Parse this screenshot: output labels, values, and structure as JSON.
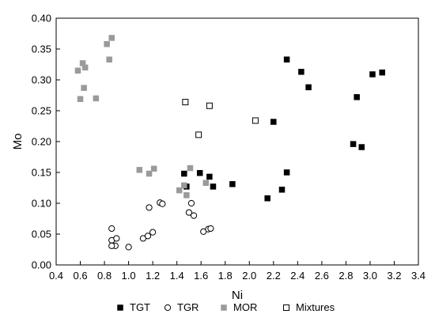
{
  "chart_data": {
    "type": "scatter",
    "title": "",
    "xlabel": "Ni",
    "ylabel": "Mo",
    "xlim": [
      0.4,
      3.4
    ],
    "ylim": [
      0.0,
      0.4
    ],
    "xticks": [
      "0.4",
      "0.6",
      "0.8",
      "1.0",
      "1.2",
      "1.4",
      "1.6",
      "1.8",
      "2.0",
      "2.2",
      "2.4",
      "2.6",
      "2.8",
      "3.0",
      "3.2",
      "3.4"
    ],
    "yticks": [
      "0.00",
      "0.05",
      "0.10",
      "0.15",
      "0.20",
      "0.25",
      "0.30",
      "0.35",
      "0.40"
    ],
    "grid": false,
    "legend_position": "bottom",
    "series": [
      {
        "name": "TGT",
        "marker": "filled-square",
        "color": "#000000",
        "points": [
          [
            1.46,
            0.148
          ],
          [
            1.48,
            0.127
          ],
          [
            1.59,
            0.149
          ],
          [
            1.67,
            0.143
          ],
          [
            1.7,
            0.127
          ],
          [
            1.86,
            0.131
          ],
          [
            2.15,
            0.108
          ],
          [
            2.27,
            0.122
          ],
          [
            2.31,
            0.15
          ],
          [
            2.2,
            0.232
          ],
          [
            2.31,
            0.333
          ],
          [
            2.43,
            0.313
          ],
          [
            2.49,
            0.288
          ],
          [
            2.86,
            0.196
          ],
          [
            2.89,
            0.272
          ],
          [
            2.93,
            0.191
          ],
          [
            3.02,
            0.309
          ],
          [
            3.1,
            0.312
          ]
        ]
      },
      {
        "name": "TGR",
        "marker": "open-circle",
        "color": "#000000",
        "points": [
          [
            0.86,
            0.059
          ],
          [
            0.86,
            0.04
          ],
          [
            0.89,
            0.031
          ],
          [
            0.9,
            0.043
          ],
          [
            0.86,
            0.031
          ],
          [
            1.0,
            0.029
          ],
          [
            1.12,
            0.043
          ],
          [
            1.16,
            0.047
          ],
          [
            1.17,
            0.093
          ],
          [
            1.2,
            0.053
          ],
          [
            1.26,
            0.101
          ],
          [
            1.28,
            0.099
          ],
          [
            1.5,
            0.085
          ],
          [
            1.52,
            0.1
          ],
          [
            1.54,
            0.08
          ],
          [
            1.62,
            0.054
          ],
          [
            1.66,
            0.058
          ],
          [
            1.68,
            0.059
          ]
        ]
      },
      {
        "name": "MOR",
        "marker": "gray-square",
        "color": "#9a9a9a",
        "points": [
          [
            0.58,
            0.315
          ],
          [
            0.6,
            0.269
          ],
          [
            0.62,
            0.327
          ],
          [
            0.63,
            0.287
          ],
          [
            0.64,
            0.32
          ],
          [
            0.73,
            0.27
          ],
          [
            0.82,
            0.358
          ],
          [
            0.84,
            0.333
          ],
          [
            0.86,
            0.368
          ],
          [
            1.09,
            0.154
          ],
          [
            1.17,
            0.148
          ],
          [
            1.21,
            0.156
          ],
          [
            1.42,
            0.121
          ],
          [
            1.46,
            0.129
          ],
          [
            1.48,
            0.113
          ],
          [
            1.51,
            0.157
          ],
          [
            1.64,
            0.133
          ]
        ]
      },
      {
        "name": "Mixtures",
        "marker": "open-square",
        "color": "#000000",
        "points": [
          [
            1.47,
            0.264
          ],
          [
            1.58,
            0.211
          ],
          [
            1.67,
            0.258
          ],
          [
            2.05,
            0.234
          ]
        ]
      }
    ]
  }
}
